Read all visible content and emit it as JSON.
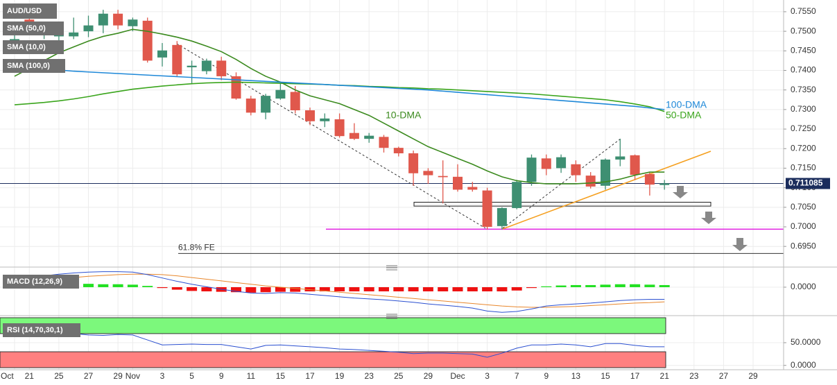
{
  "chart_data": [
    {
      "type": "candlestick",
      "symbol": "AUD/USD",
      "categories": [
        "Oct",
        "21",
        null,
        "25",
        null,
        "27",
        null,
        "29",
        "Nov",
        null,
        "3",
        null,
        "5",
        null,
        "9",
        null,
        "11",
        null,
        "15",
        null,
        "17",
        null,
        "19",
        null,
        "23",
        null,
        "25",
        null,
        "29",
        null,
        "Dec",
        null,
        "3",
        null,
        "7",
        null,
        "9",
        null,
        "13",
        null,
        "15",
        null,
        "17",
        null,
        "21",
        null,
        "23",
        null,
        "27",
        null,
        "29"
      ],
      "open": [
        0.746,
        0.753,
        0.749,
        0.7487,
        0.7487,
        0.75,
        0.7515,
        0.7545,
        0.7513,
        0.7527,
        0.7433,
        0.7465,
        0.7408,
        0.7398,
        0.7425,
        0.7385,
        0.7328,
        0.7292,
        0.7328,
        0.7345,
        0.7298,
        0.727,
        0.7275,
        0.724,
        0.7225,
        0.723,
        0.7202,
        0.7188,
        0.7143,
        0.713,
        0.7128,
        0.7102,
        0.7093,
        0.7002,
        0.7048,
        0.7115,
        0.7175,
        0.715,
        0.716,
        0.7131,
        0.7105,
        0.7172,
        0.7183,
        0.7135,
        0.7107,
        null,
        null,
        null,
        null,
        null,
        null
      ],
      "high": [
        0.749,
        0.7545,
        0.752,
        0.752,
        0.7535,
        0.754,
        0.7555,
        0.7555,
        0.7535,
        0.7535,
        0.747,
        0.7475,
        0.7425,
        0.743,
        0.7435,
        0.7395,
        0.7335,
        0.734,
        0.737,
        0.736,
        0.7305,
        0.729,
        0.729,
        0.7265,
        0.724,
        0.7235,
        0.7205,
        0.7195,
        0.715,
        0.717,
        0.716,
        0.7115,
        0.71,
        0.705,
        0.712,
        0.7185,
        0.7185,
        0.7185,
        0.717,
        0.714,
        0.7175,
        0.7225,
        0.7185,
        0.714,
        0.712,
        null,
        null,
        null,
        null,
        null,
        null
      ],
      "low": [
        0.7445,
        0.749,
        0.748,
        0.747,
        0.748,
        0.7485,
        0.7495,
        0.7505,
        0.75,
        0.742,
        0.741,
        0.7385,
        0.7365,
        0.739,
        0.7375,
        0.7325,
        0.7285,
        0.7275,
        0.7325,
        0.729,
        0.726,
        0.7255,
        0.7228,
        0.7222,
        0.7215,
        0.719,
        0.718,
        0.7105,
        0.711,
        0.706,
        0.709,
        0.709,
        0.6993,
        0.6993,
        0.7045,
        0.7105,
        0.7132,
        0.7138,
        0.7115,
        0.7098,
        0.7095,
        0.7155,
        0.712,
        0.708,
        0.7095,
        null,
        null,
        null,
        null,
        null,
        null
      ],
      "close": [
        0.748,
        0.75,
        0.7505,
        0.7505,
        0.7497,
        0.7515,
        0.7545,
        0.7515,
        0.753,
        0.7425,
        0.7451,
        0.739,
        0.7412,
        0.7425,
        0.7385,
        0.7328,
        0.7292,
        0.7335,
        0.735,
        0.7298,
        0.727,
        0.7277,
        0.7232,
        0.7225,
        0.7233,
        0.7202,
        0.7188,
        0.7137,
        0.7132,
        0.7127,
        0.7095,
        0.7095,
        0.7,
        0.7048,
        0.7115,
        0.7177,
        0.7148,
        0.7178,
        0.7132,
        0.7103,
        0.7172,
        0.718,
        0.7133,
        0.7108,
        0.7111,
        null,
        null,
        null,
        null,
        null,
        null
      ],
      "up_color": "#3e8f72",
      "down_color": "#e0584c",
      "series": [
        {
          "name": "SMA (50,0)",
          "label": "50-DMA",
          "color": "#3aa51c",
          "values": [
            0.7312,
            0.7315,
            0.7318,
            0.7322,
            0.7327,
            0.7333,
            0.734,
            0.7346,
            0.7352,
            0.7356,
            0.736,
            0.7363,
            0.7366,
            0.7368,
            0.7369,
            0.737,
            0.7369,
            0.7368,
            0.7367,
            0.7366,
            0.7365,
            0.7364,
            0.7362,
            0.7361,
            0.7359,
            0.7358,
            0.7356,
            0.7355,
            0.7353,
            0.7352,
            0.735,
            0.7348,
            0.7346,
            0.7344,
            0.7342,
            0.734,
            0.7337,
            0.7334,
            0.7331,
            0.7328,
            0.7325,
            0.732,
            0.7314,
            0.7307,
            0.7295,
            null,
            null,
            null,
            null,
            null,
            null
          ]
        },
        {
          "name": "SMA (10,0)",
          "label": "10-DMA",
          "color": "#3b8a1e",
          "values": [
            0.7385,
            0.7405,
            0.7425,
            0.7445,
            0.746,
            0.7475,
            0.7487,
            0.7495,
            0.7505,
            0.75,
            0.7493,
            0.7485,
            0.7475,
            0.7462,
            0.7448,
            0.7428,
            0.7405,
            0.7385,
            0.737,
            0.735,
            0.7335,
            0.7325,
            0.7315,
            0.73,
            0.7285,
            0.7265,
            0.7245,
            0.7225,
            0.7205,
            0.719,
            0.7175,
            0.716,
            0.7143,
            0.7128,
            0.7118,
            0.7113,
            0.711,
            0.711,
            0.711,
            0.7112,
            0.7115,
            0.7122,
            0.7132,
            0.714,
            0.714,
            null,
            null,
            null,
            null,
            null,
            null
          ]
        },
        {
          "name": "SMA (100,0)",
          "label": "100-DMA",
          "color": "#1e88d8",
          "values": [
            0.741,
            0.7407,
            0.7404,
            0.7401,
            0.7398,
            0.7396,
            0.7394,
            0.7392,
            0.739,
            0.7388,
            0.7386,
            0.7384,
            0.7382,
            0.738,
            0.7378,
            0.7376,
            0.7374,
            0.7372,
            0.737,
            0.7368,
            0.7366,
            0.7364,
            0.7362,
            0.736,
            0.7358,
            0.7356,
            0.7354,
            0.7352,
            0.735,
            0.7347,
            0.7344,
            0.7341,
            0.7338,
            0.7335,
            0.7332,
            0.7329,
            0.7326,
            0.7323,
            0.732,
            0.7317,
            0.7314,
            0.7311,
            0.7308,
            0.7304,
            0.73,
            null,
            null,
            null,
            null,
            null,
            null
          ]
        }
      ],
      "last_price": 0.711085,
      "last_price_color": "#1b2d5c",
      "support_zone": [
        0.7053,
        0.7063
      ],
      "support_line": {
        "value": 0.6994,
        "color": "#e01ee0"
      },
      "fe_level": {
        "value": 0.6932,
        "label": "61.8% FE"
      },
      "ylim": [
        0.6906,
        0.758
      ],
      "yticks": [
        {
          "value": 0.695,
          "label": "0.6950"
        },
        {
          "value": 0.7,
          "label": "0.7000"
        },
        {
          "value": 0.705,
          "label": "0.7050"
        },
        {
          "value": 0.71,
          "label": "0.7100"
        },
        {
          "value": 0.715,
          "label": "0.7150"
        },
        {
          "value": 0.72,
          "label": "0.7200"
        },
        {
          "value": 0.725,
          "label": "0.7250"
        },
        {
          "value": 0.73,
          "label": "0.7300"
        },
        {
          "value": 0.735,
          "label": "0.7350"
        },
        {
          "value": 0.74,
          "label": "0.7400"
        },
        {
          "value": 0.745,
          "label": "0.7450"
        },
        {
          "value": 0.75,
          "label": "0.7500"
        },
        {
          "value": 0.755,
          "label": "0.7550"
        }
      ],
      "grid": true
    },
    {
      "type": "macd",
      "title": "MACD (12,26,9)",
      "histogram": {
        "up_color": "#22e022",
        "down_color": "#ee1111",
        "values": [
          0.0006,
          0.0007,
          0.0007,
          0.0008,
          0.0008,
          0.0008,
          0.0007,
          0.0007,
          0.0006,
          0.0003,
          -0.0002,
          -0.0006,
          -0.0009,
          -0.001,
          -0.0011,
          -0.0012,
          -0.0013,
          -0.0012,
          -0.0011,
          -0.0011,
          -0.001,
          -0.001,
          -0.001,
          -0.001,
          -0.001,
          -0.001,
          -0.001,
          -0.001,
          -0.001,
          -0.001,
          -0.001,
          -0.001,
          -0.001,
          -0.001,
          -0.0008,
          -0.0002,
          0.0002,
          0.0004,
          0.0005,
          0.0005,
          0.0006,
          0.0007,
          0.0007,
          0.0006,
          0.0005,
          null,
          null,
          null,
          null,
          null,
          null
        ]
      },
      "macd_line": {
        "color": "#2a4fd0",
        "values": [
          0.0017,
          0.0022,
          0.0027,
          0.0031,
          0.0034,
          0.0036,
          0.0037,
          0.0037,
          0.0036,
          0.003,
          0.0022,
          0.0014,
          0.0007,
          0.0001,
          -0.0005,
          -0.001,
          -0.0014,
          -0.0015,
          -0.0013,
          -0.0014,
          -0.0017,
          -0.002,
          -0.0023,
          -0.0026,
          -0.0028,
          -0.003,
          -0.0033,
          -0.0036,
          -0.004,
          -0.0043,
          -0.0046,
          -0.005,
          -0.0057,
          -0.006,
          -0.0058,
          -0.0052,
          -0.0045,
          -0.0042,
          -0.004,
          -0.0038,
          -0.0035,
          -0.0032,
          -0.003,
          -0.0029,
          -0.0029,
          null,
          null,
          null,
          null,
          null,
          null
        ]
      },
      "signal_line": {
        "color": "#e8862a",
        "values": [
          0.0007,
          0.0011,
          0.0015,
          0.0019,
          0.0023,
          0.0026,
          0.0028,
          0.003,
          0.0031,
          0.0031,
          0.003,
          0.0027,
          0.0023,
          0.0019,
          0.0015,
          0.0011,
          0.0007,
          0.0003,
          0,
          -0.0003,
          -0.0006,
          -0.0009,
          -0.0012,
          -0.0015,
          -0.0018,
          -0.0021,
          -0.0024,
          -0.0027,
          -0.003,
          -0.0033,
          -0.0036,
          -0.0039,
          -0.0042,
          -0.0045,
          -0.0047,
          -0.0048,
          -0.0048,
          -0.0047,
          -0.0046,
          -0.0044,
          -0.0042,
          -0.004,
          -0.0038,
          -0.0037,
          -0.0035,
          null,
          null,
          null,
          null,
          null,
          null
        ]
      },
      "ylim": [
        -0.0063,
        0.0048
      ],
      "yticks": [
        {
          "value": 0,
          "label": "0.0000"
        }
      ]
    },
    {
      "type": "line",
      "title": "RSI (14,70,30,1)",
      "color": "#2a4fd0",
      "values": [
        71,
        70,
        68,
        69,
        70,
        67,
        66,
        68,
        67,
        56,
        45,
        46,
        47,
        46,
        46,
        41,
        36,
        44,
        45,
        43,
        41,
        39,
        36,
        35,
        33,
        31,
        29,
        26,
        27,
        27,
        26,
        25,
        18,
        27,
        38,
        45,
        45,
        47,
        45,
        41,
        48,
        48,
        44,
        41,
        41,
        null,
        null,
        null,
        null,
        null,
        null
      ],
      "overbought": 70,
      "oversold": 30,
      "overbought_color": "#7cf87c",
      "oversold_color": "#ff8080",
      "ylim": [
        -5,
        105
      ],
      "yticks": [
        {
          "value": 50,
          "label": "50.0000"
        },
        {
          "value": 0,
          "label": "0.0000"
        }
      ]
    }
  ]
}
